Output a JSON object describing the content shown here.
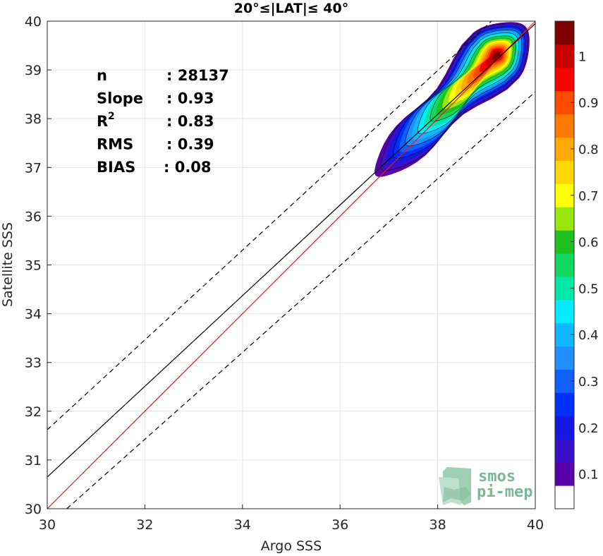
{
  "chart_data": {
    "type": "heatmap",
    "title": "20°≤|LAT|≤ 40°",
    "xlabel": "Argo SSS",
    "ylabel": "Satellite SSS",
    "xlim": [
      30,
      40
    ],
    "ylim": [
      30,
      40
    ],
    "xticks": [
      "30",
      "32",
      "34",
      "36",
      "38",
      "40"
    ],
    "yticks": [
      "30",
      "31",
      "32",
      "33",
      "34",
      "35",
      "36",
      "37",
      "38",
      "39",
      "40"
    ],
    "grid": true,
    "stats": [
      {
        "label": "n",
        "value": ": 28137"
      },
      {
        "label": "Slope",
        "value": ": 0.93"
      },
      {
        "label": "R",
        "sup": "2",
        "value": ": 0.83"
      },
      {
        "label": "RMS",
        "value": ": 0.39"
      },
      {
        "label": "BIAS",
        "value": ": 0.08"
      }
    ],
    "lines": [
      {
        "role": "identity",
        "color": "#e41a1c",
        "style": "solid",
        "points": [
          [
            30,
            30
          ],
          [
            40,
            40
          ]
        ]
      },
      {
        "role": "regression fit",
        "color": "#000000",
        "style": "solid",
        "points": [
          [
            30,
            30.65
          ],
          [
            40,
            39.95
          ]
        ]
      },
      {
        "role": "upper bound",
        "color": "#000000",
        "style": "dashed",
        "points": [
          [
            30,
            31.62
          ],
          [
            39.1,
            40
          ]
        ]
      },
      {
        "role": "lower bound",
        "color": "#000000",
        "style": "dashed",
        "points": [
          [
            30.4,
            30
          ],
          [
            40,
            38.55
          ]
        ]
      }
    ],
    "density": {
      "center": [
        39.2,
        39.3
      ],
      "peak": 1.0,
      "contour_levels": [
        0.05,
        0.1,
        0.2,
        0.3,
        0.4,
        0.5,
        0.6,
        0.7,
        0.8,
        0.9
      ]
    },
    "colorbar": {
      "ticks": [
        "0.1",
        "0.2",
        "0.3",
        "0.4",
        "0.5",
        "0.6",
        "0.7",
        "0.8",
        "0.9",
        "1"
      ],
      "tick_values": [
        0.1,
        0.2,
        0.3,
        0.4,
        0.5,
        0.6,
        0.7,
        0.8,
        0.9,
        1.0
      ],
      "range": [
        0,
        1
      ],
      "colors": [
        "#ffffff",
        "#5a00a8",
        "#3a10c8",
        "#1418e0",
        "#0030ff",
        "#1060ff",
        "#2090ff",
        "#10b8ff",
        "#00ecff",
        "#00e8a8",
        "#10d860",
        "#20c020",
        "#98e810",
        "#ffff00",
        "#ffd800",
        "#ffaa00",
        "#ff7a00",
        "#ff4a00",
        "#ff0000",
        "#c80000",
        "#800000"
      ]
    }
  },
  "watermark": {
    "line1": "smos",
    "line2": "pi-mep",
    "color": "#5aa67a"
  }
}
